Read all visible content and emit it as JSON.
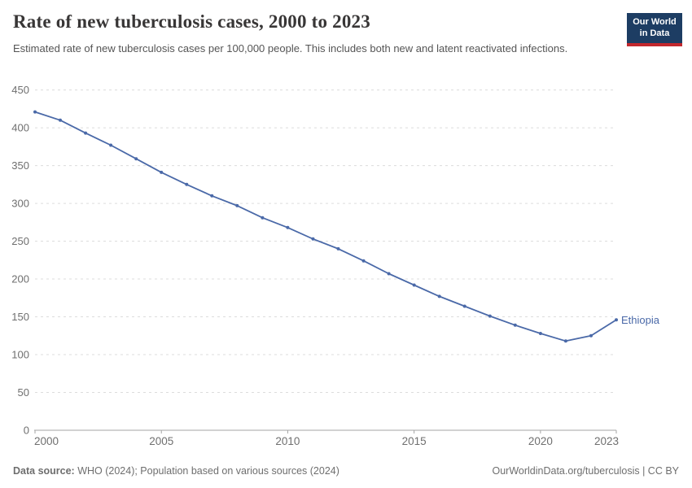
{
  "header": {
    "title": "Rate of new tuberculosis cases, 2000 to 2023",
    "subtitle": "Estimated rate of new tuberculosis cases per 100,000 people. This includes both new and latent reactivated infections.",
    "logo": {
      "line1": "Our World",
      "line2": "in Data",
      "bg_color": "#1d3d63",
      "accent_color": "#c2272d"
    }
  },
  "chart_data": {
    "type": "line",
    "title": "Rate of new tuberculosis cases, 2000 to 2023",
    "xlabel": "",
    "ylabel": "",
    "xlim": [
      2000,
      2023
    ],
    "ylim": [
      0,
      450
    ],
    "grid": true,
    "x_ticks": [
      2000,
      2005,
      2010,
      2015,
      2020,
      2023
    ],
    "y_ticks": [
      0,
      50,
      100,
      150,
      200,
      250,
      300,
      350,
      400,
      450
    ],
    "x": [
      2000,
      2001,
      2002,
      2003,
      2004,
      2005,
      2006,
      2007,
      2008,
      2009,
      2010,
      2011,
      2012,
      2013,
      2014,
      2015,
      2016,
      2017,
      2018,
      2019,
      2020,
      2021,
      2022,
      2023
    ],
    "series": [
      {
        "name": "Ethiopia",
        "values": [
          421,
          410,
          393,
          377,
          359,
          341,
          325,
          310,
          297,
          281,
          268,
          253,
          240,
          224,
          207,
          192,
          177,
          164,
          151,
          139,
          128,
          118,
          125,
          146
        ],
        "color": "#4a69a8"
      }
    ],
    "legend_position": "end-of-line-label",
    "end_label": "Ethiopia",
    "colors": {
      "gridline": "#dcdcdc",
      "axis_line": "#a5a5a5",
      "tick_text": "#6f6f6f"
    }
  },
  "footer": {
    "source_label": "Data source:",
    "source_text": " WHO (2024); Population based on various sources (2024)",
    "license_text": "OurWorldinData.org/tuberculosis | CC BY"
  }
}
